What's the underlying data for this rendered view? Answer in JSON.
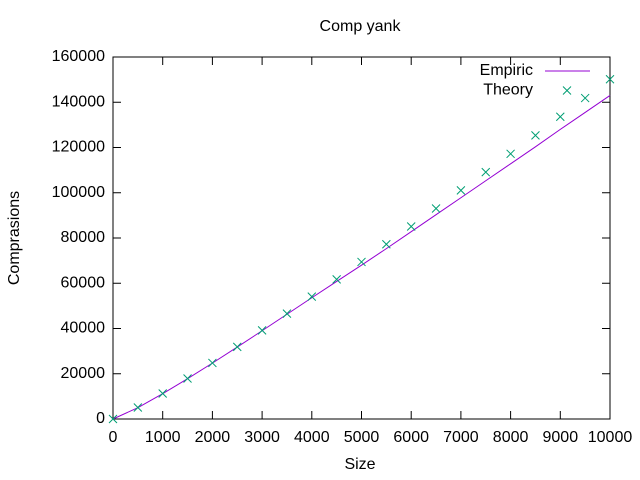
{
  "chart_data": {
    "type": "line",
    "title": "Comp yank",
    "x_label": "Size",
    "y_label": "Comprasions",
    "x": [
      0,
      500,
      1000,
      1500,
      2000,
      2500,
      3000,
      3500,
      4000,
      4500,
      5000,
      5500,
      6000,
      6500,
      7000,
      7500,
      8000,
      8500,
      9000,
      9500,
      10000
    ],
    "series": [
      {
        "name": "Empiric",
        "color": "#9400d3",
        "style": "line",
        "values": [
          0,
          5000,
          11200,
          17800,
          24700,
          31800,
          39000,
          46300,
          53600,
          60800,
          68000,
          75300,
          82800,
          90300,
          97800,
          105300,
          112800,
          120300,
          128000,
          135500,
          143000
        ]
      },
      {
        "name": "Theory",
        "color": "#009e73",
        "style": "points",
        "values": [
          0,
          5066,
          11262,
          17884,
          24783,
          31889,
          39158,
          46563,
          54086,
          61712,
          69427,
          77222,
          85096,
          93032,
          101034,
          109099,
          117213,
          125375,
          133593,
          141852,
          150151
        ]
      }
    ],
    "xlim": [
      0,
      10000
    ],
    "xticks": [
      0,
      1000,
      2000,
      3000,
      4000,
      5000,
      6000,
      7000,
      8000,
      9000,
      10000
    ],
    "ylim": [
      0,
      160000
    ],
    "yticks": [
      0,
      20000,
      40000,
      60000,
      80000,
      100000,
      120000,
      140000,
      160000
    ],
    "legend": "top-right",
    "grid": false
  }
}
